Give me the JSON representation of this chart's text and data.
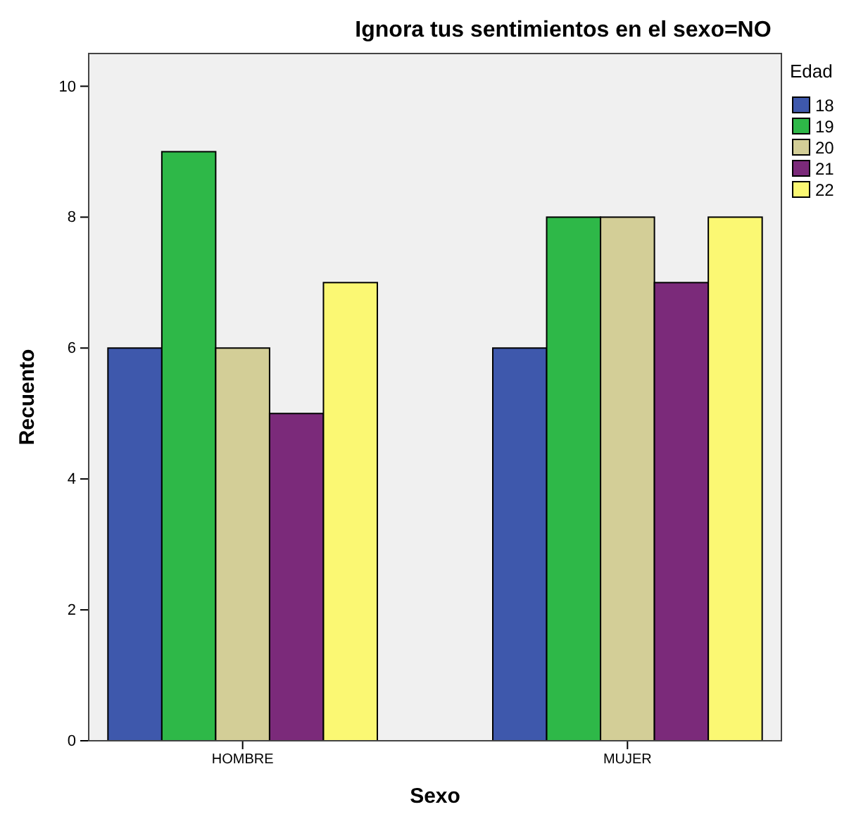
{
  "chart_data": {
    "type": "bar",
    "title": "Ignora tus sentimientos en el sexo=NO",
    "xlabel": "Sexo",
    "ylabel": "Recuento",
    "legend_title": "Edad",
    "categories": [
      "HOMBRE",
      "MUJER"
    ],
    "series": [
      {
        "name": "18",
        "color": "#3e58ac",
        "values": [
          6,
          6
        ]
      },
      {
        "name": "19",
        "color": "#2eb848",
        "values": [
          9,
          8
        ]
      },
      {
        "name": "20",
        "color": "#d3ce97",
        "values": [
          6,
          8
        ]
      },
      {
        "name": "21",
        "color": "#7b2a7a",
        "values": [
          5,
          7
        ]
      },
      {
        "name": "22",
        "color": "#fbf873",
        "values": [
          7,
          8
        ]
      }
    ],
    "ylim": [
      0,
      10.5
    ],
    "yticks": [
      0,
      2,
      4,
      6,
      8,
      10
    ],
    "grid": false,
    "legend": "right"
  }
}
